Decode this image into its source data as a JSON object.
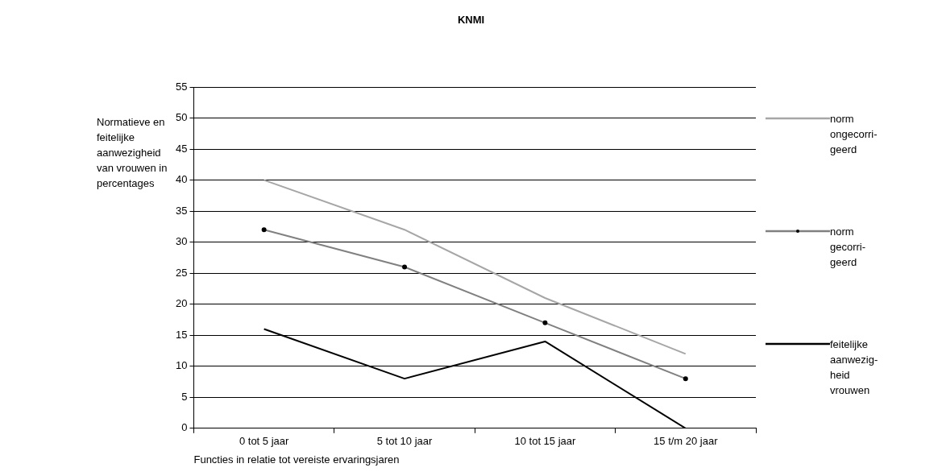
{
  "chart_data": {
    "type": "line",
    "title": "KNMI",
    "xlabel": "Functies in relatie tot vereiste ervaringsjaren",
    "ylabel": "Normatieve en feitelijke aanwezigheid van vrouwen in percentages",
    "categories": [
      "0 tot 5 jaar",
      "5 tot 10 jaar",
      "10 tot 15 jaar",
      "15 t/m 20 jaar"
    ],
    "series": [
      {
        "name": "norm ongecorri-geerd",
        "color": "#a6a6a6",
        "marker": "none",
        "values": [
          40,
          32,
          21,
          12
        ]
      },
      {
        "name": "norm gecorri-geerd",
        "color": "#808080",
        "marker": "circle",
        "values": [
          32,
          26,
          17,
          8
        ]
      },
      {
        "name": "feitelijke aanwezig-heid vrouwen",
        "color": "#000000",
        "marker": "none",
        "values": [
          16,
          8,
          14,
          0
        ]
      }
    ],
    "ylim": [
      0,
      55
    ],
    "yticks": [
      0,
      5,
      10,
      15,
      20,
      25,
      30,
      35,
      40,
      45,
      50,
      55
    ],
    "grid": "y",
    "legend": "right"
  }
}
